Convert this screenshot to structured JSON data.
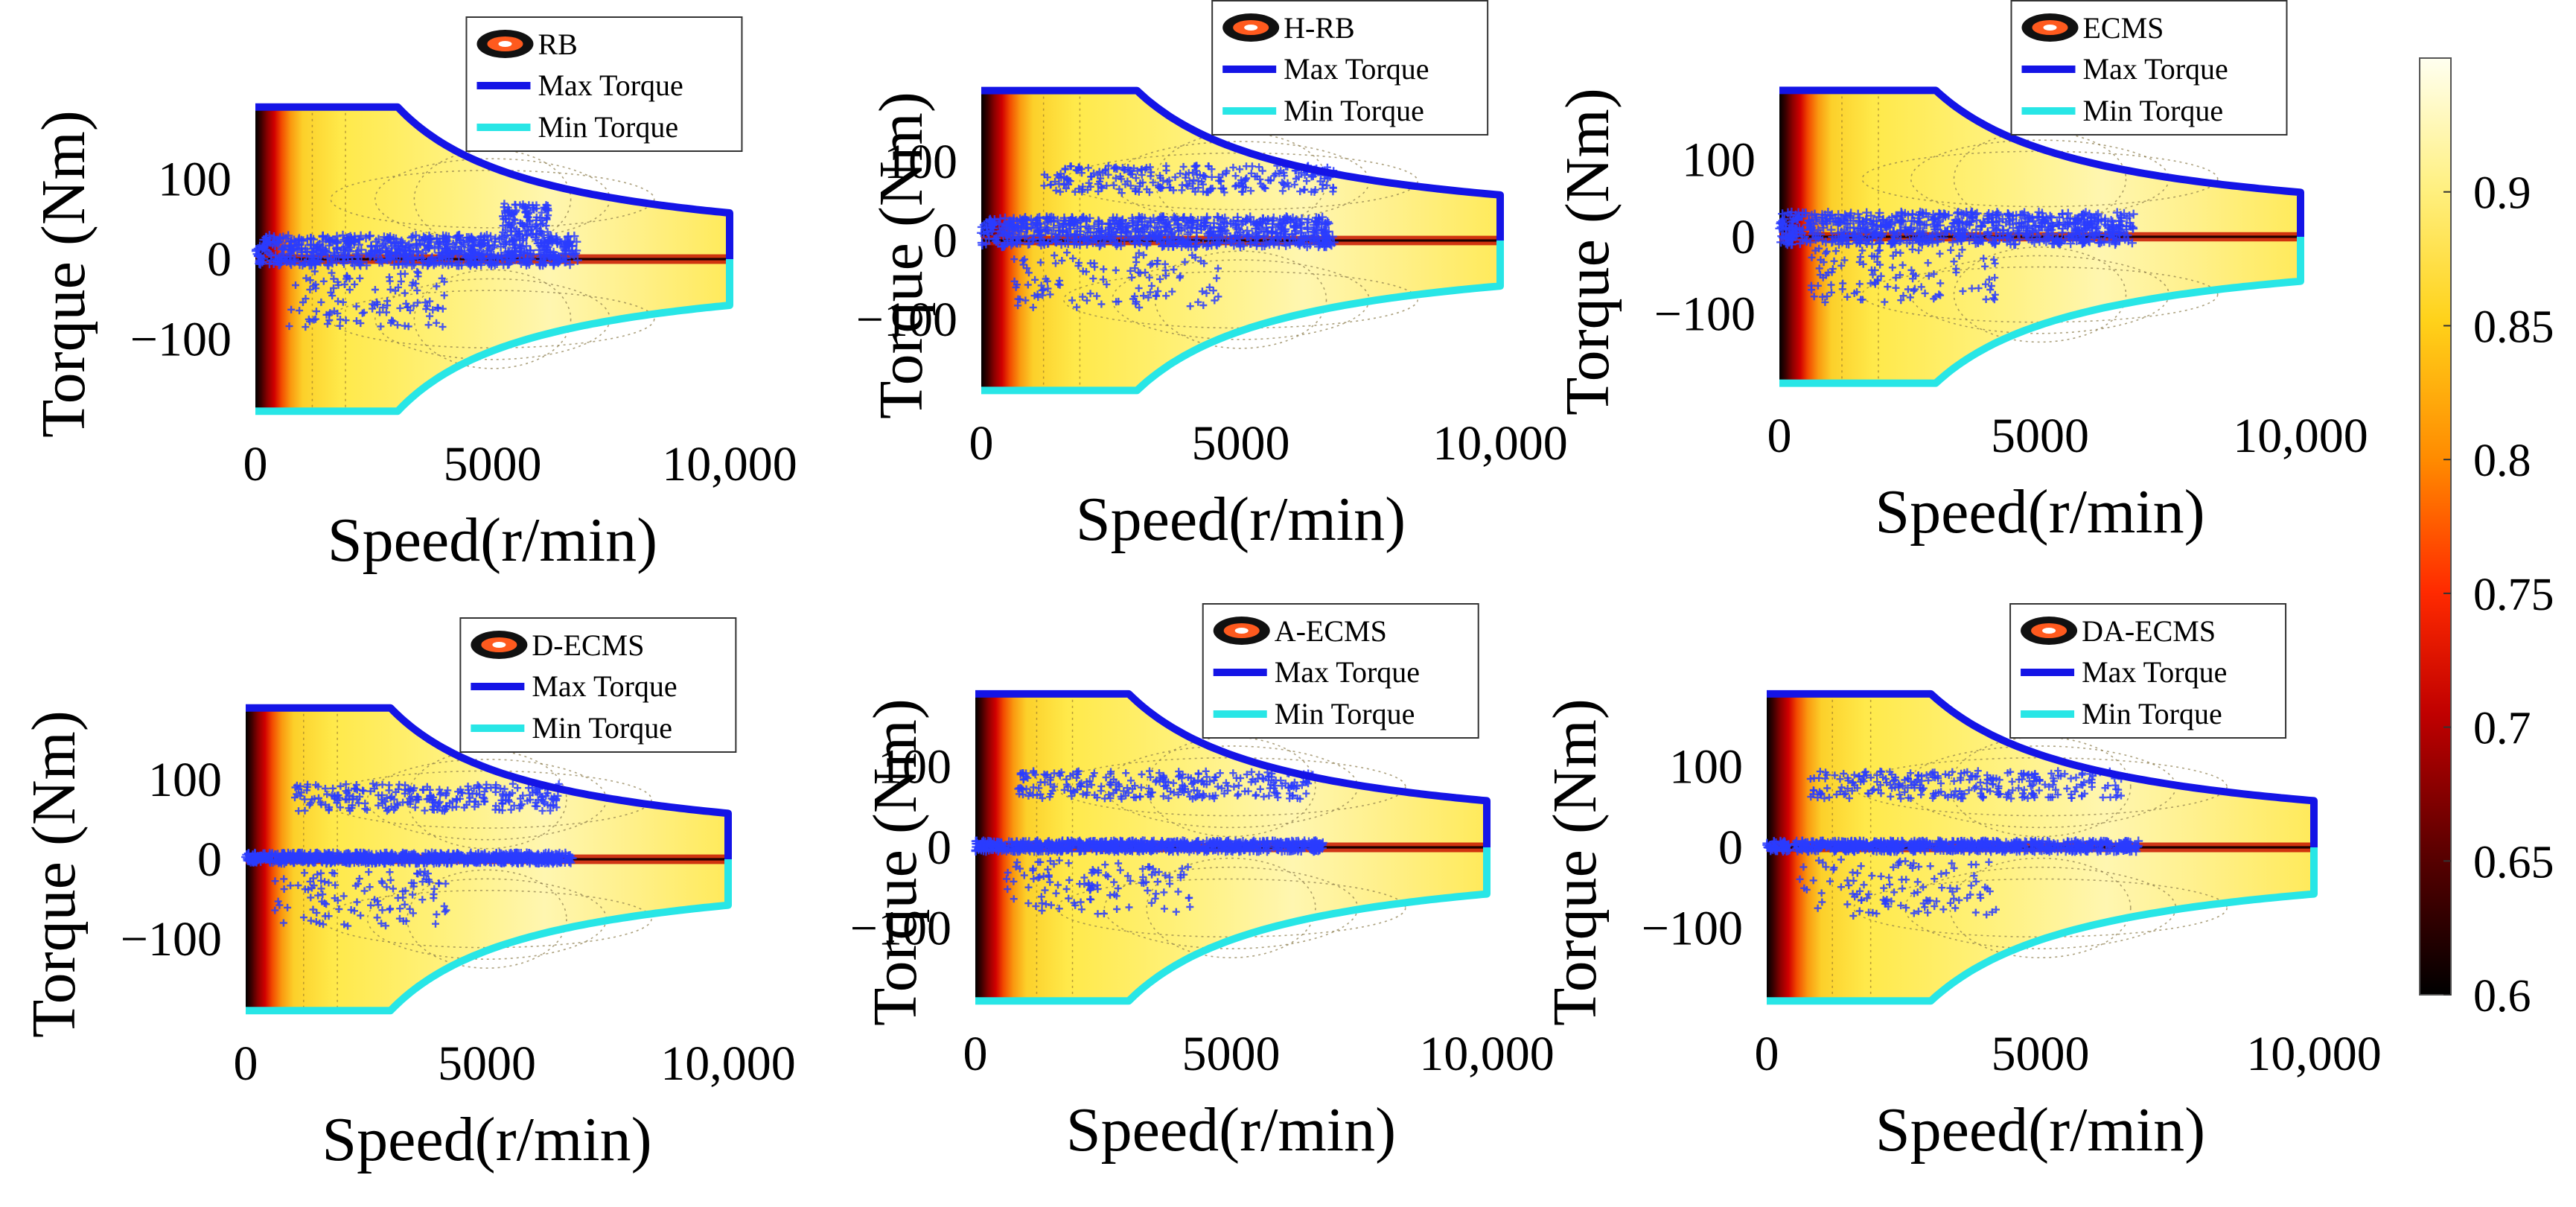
{
  "chart_data": {
    "type": "heatmap",
    "description_series": "Motor efficiency map with operating points, max and min torque envelopes",
    "colors": {
      "max_torque": "#1414e6",
      "min_torque": "#28e6e6",
      "points": "#2a3cff",
      "legend_marker_outer": "#111111",
      "legend_marker_inner": "#ff5a1e"
    },
    "x_axis": {
      "label": "Speed(r/min)",
      "range": [
        0,
        10000
      ],
      "ticks": [
        0,
        5000,
        10000
      ],
      "tick_labels": [
        "0",
        "5000",
        "10,000"
      ]
    },
    "y_axis": {
      "label": "Torque (Nm)",
      "range": [
        -200,
        200
      ],
      "ticks": [
        100,
        0,
        -100
      ],
      "tick_labels": [
        "100",
        "0",
        "−100"
      ]
    },
    "envelope": {
      "base_speed": 3000,
      "max_speed": 10000,
      "rated_torque": 190,
      "torque_at_max_speed": 57
    },
    "legend": {
      "entries": [
        "Max Torque",
        "Min Torque"
      ]
    },
    "colorbar": {
      "range": [
        0.6,
        0.95
      ],
      "ticks": [
        0.9,
        0.85,
        0.8,
        0.75,
        0.7,
        0.65,
        0.6
      ],
      "tick_labels": [
        "0.9",
        "0.85",
        "0.8",
        "0.75",
        "0.7",
        "0.65",
        "0.6"
      ]
    },
    "panels": [
      {
        "strategy": "RB",
        "regions": [
          {
            "x": [
              0,
              6800
            ],
            "y": [
              -8,
              30
            ],
            "density": "dense"
          },
          {
            "x": [
              700,
              4000
            ],
            "y": [
              -85,
              -15
            ],
            "density": "sparse"
          },
          {
            "x": [
              5200,
              6200
            ],
            "y": [
              30,
              70
            ],
            "density": "sparse"
          }
        ]
      },
      {
        "strategy": "H-RB",
        "regions": [
          {
            "x": [
              0,
              6800
            ],
            "y": [
              -8,
              30
            ],
            "density": "dense"
          },
          {
            "x": [
              1200,
              6800
            ],
            "y": [
              60,
              95
            ],
            "density": "medium"
          },
          {
            "x": [
              600,
              4600
            ],
            "y": [
              -85,
              -15
            ],
            "density": "sparse"
          }
        ]
      },
      {
        "strategy": "ECMS",
        "regions": [
          {
            "x": [
              0,
              6800
            ],
            "y": [
              -10,
              32
            ],
            "density": "dense"
          },
          {
            "x": [
              600,
              4200
            ],
            "y": [
              -85,
              -15
            ],
            "density": "sparse"
          }
        ]
      },
      {
        "strategy": "D-ECMS",
        "regions": [
          {
            "x": [
              0,
              6800
            ],
            "y": [
              -5,
              8
            ],
            "density": "dense"
          },
          {
            "x": [
              1000,
              6500
            ],
            "y": [
              60,
              95
            ],
            "density": "medium"
          },
          {
            "x": [
              600,
              4200
            ],
            "y": [
              -85,
              -15
            ],
            "density": "sparse"
          }
        ]
      },
      {
        "strategy": "A-ECMS",
        "regions": [
          {
            "x": [
              0,
              6800
            ],
            "y": [
              -5,
              8
            ],
            "density": "dense"
          },
          {
            "x": [
              800,
              6600
            ],
            "y": [
              60,
              95
            ],
            "density": "medium"
          },
          {
            "x": [
              600,
              4200
            ],
            "y": [
              -85,
              -15
            ],
            "density": "sparse"
          }
        ]
      },
      {
        "strategy": "DA-ECMS",
        "regions": [
          {
            "x": [
              0,
              6800
            ],
            "y": [
              -5,
              8
            ],
            "density": "dense"
          },
          {
            "x": [
              800,
              6500
            ],
            "y": [
              60,
              95
            ],
            "density": "medium"
          },
          {
            "x": [
              600,
              4200
            ],
            "y": [
              -85,
              -15
            ],
            "density": "sparse"
          }
        ]
      }
    ]
  }
}
